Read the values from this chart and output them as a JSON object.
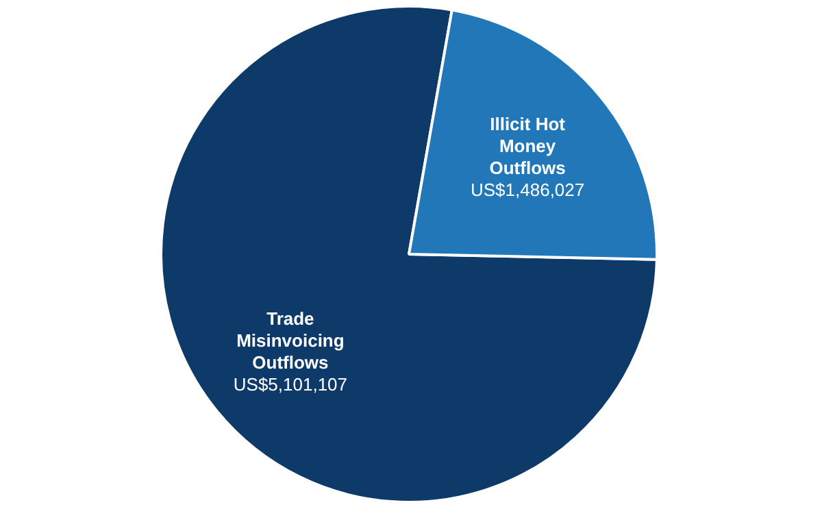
{
  "chart_data": {
    "type": "pie",
    "categories": [
      "Trade Misinvoicing Outflows",
      "Illicit Hot Money Outflows"
    ],
    "values": [
      5101107,
      1486027
    ],
    "colors": [
      "#0e3a6a",
      "#2177b8"
    ],
    "value_labels": [
      "US$5,101,107",
      "US$1,486,027"
    ]
  }
}
